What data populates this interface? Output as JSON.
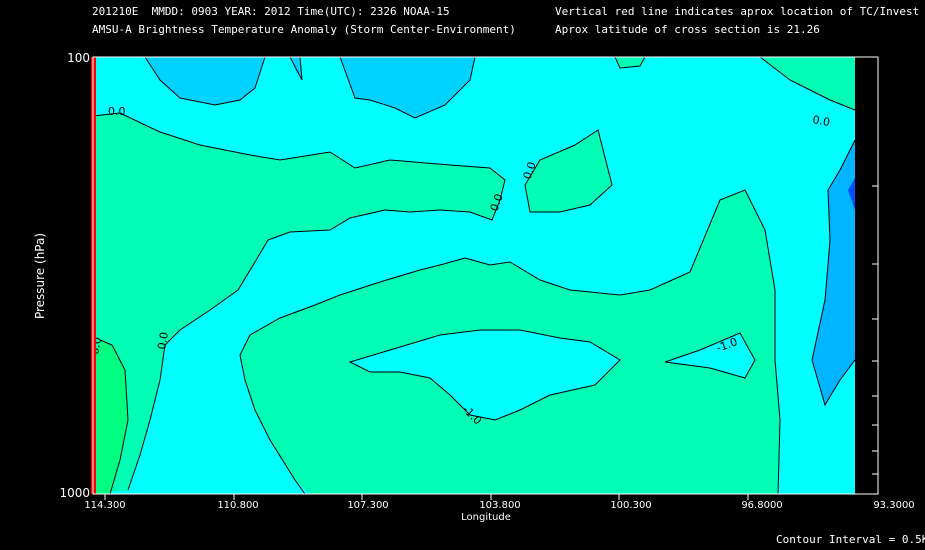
{
  "header": {
    "line1_left": "201210E  MMDD: 0903 YEAR: 2012 Time(UTC): 2326 NOAA-15",
    "line2_left": "AMSU-A Brightness Temperature Anomaly (Storm Center-Environment)",
    "line1_right": "Vertical red line indicates aprox location of TC/Invest",
    "line2_right": "Aprox latitude of cross section is 21.26"
  },
  "footer": {
    "contour_interval": "Contour Interval = 0.5K"
  },
  "colors": {
    "background": "#000000",
    "cyan": "#00ffff",
    "green": "#00ffb4",
    "brightgreen": "#00ff80",
    "lightblue": "#00d2ff",
    "skyblue": "#00b4ff",
    "darkblue": "#0050ff",
    "tc_line": "#ff0000"
  },
  "chart_data": {
    "type": "contour",
    "xlabel": "Longitude",
    "ylabel": "Pressure (hPa)",
    "x_ticks": [
      "114.300",
      "110.800",
      "107.300",
      "103.800",
      "100.300",
      "96.8000",
      "93.3000"
    ],
    "xlim": [
      114.3,
      93.3
    ],
    "ylim": [
      1000,
      100
    ],
    "y_tick_labels": [
      "100",
      "1000"
    ],
    "tc_longitude": 114.3,
    "contour_labels": [
      "0.0",
      "0.0",
      "0.0",
      "0.0",
      "0.0",
      "0.0",
      "-1.0",
      "-1.0"
    ]
  }
}
